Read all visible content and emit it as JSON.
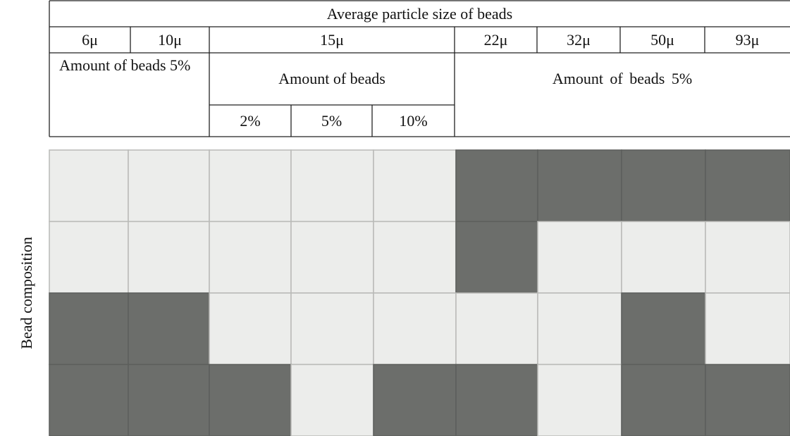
{
  "table": {
    "title": "Average particle size of beads",
    "sizes": [
      "6μ",
      "10μ",
      "15μ",
      "22μ",
      "32μ",
      "50μ",
      "93μ"
    ],
    "amount_left": "Amount of beads 5%",
    "amount_middle": "Amount of beads",
    "amounts": [
      "2%",
      "5%",
      "10%"
    ],
    "amount_right": "Amount of beads 5%"
  },
  "photo": {
    "side_label": "Bead composition"
  }
}
